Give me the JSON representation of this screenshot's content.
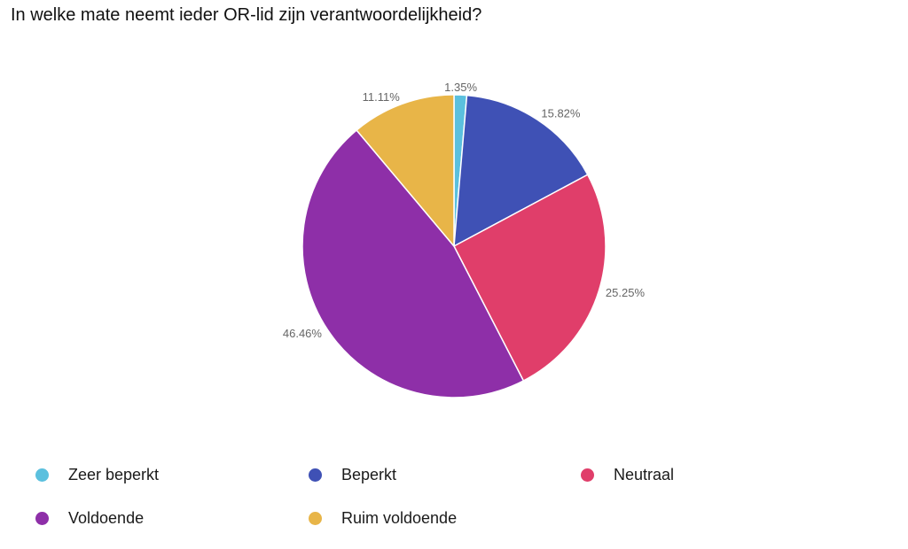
{
  "chart_data": {
    "type": "pie",
    "title": "In welke mate neemt ieder OR-lid zijn verantwoordelijkheid?",
    "categories": [
      "Zeer beperkt",
      "Beperkt",
      "Neutraal",
      "Voldoende",
      "Ruim voldoende"
    ],
    "values": [
      1.35,
      15.82,
      25.25,
      46.46,
      11.11
    ],
    "labels": [
      "1.35%",
      "15.82%",
      "25.25%",
      "46.46%",
      "11.11%"
    ],
    "colors": [
      "#5bc0de",
      "#3f51b5",
      "#e03e6a",
      "#8e2fa8",
      "#e8b548"
    ],
    "legend_position": "bottom"
  }
}
